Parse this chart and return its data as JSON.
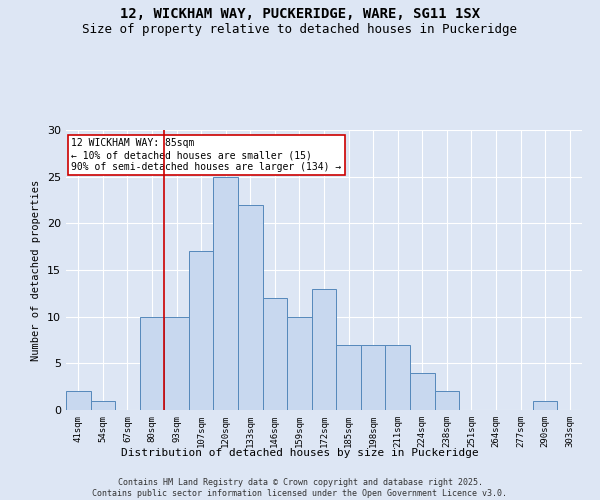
{
  "title": "12, WICKHAM WAY, PUCKERIDGE, WARE, SG11 1SX",
  "subtitle": "Size of property relative to detached houses in Puckeridge",
  "xlabel": "Distribution of detached houses by size in Puckeridge",
  "ylabel": "Number of detached properties",
  "bin_labels": [
    "41sqm",
    "54sqm",
    "67sqm",
    "80sqm",
    "93sqm",
    "107sqm",
    "120sqm",
    "133sqm",
    "146sqm",
    "159sqm",
    "172sqm",
    "185sqm",
    "198sqm",
    "211sqm",
    "224sqm",
    "238sqm",
    "251sqm",
    "264sqm",
    "277sqm",
    "290sqm",
    "303sqm"
  ],
  "bar_values": [
    2,
    1,
    0,
    10,
    10,
    17,
    25,
    22,
    12,
    10,
    13,
    7,
    7,
    7,
    4,
    2,
    0,
    0,
    0,
    1,
    0
  ],
  "bar_color": "#c8d8ef",
  "bar_edge_color": "#5588bb",
  "vline_color": "#cc0000",
  "annotation_text": "12 WICKHAM WAY: 85sqm\n← 10% of detached houses are smaller (15)\n90% of semi-detached houses are larger (134) →",
  "annotation_box_color": "#ffffff",
  "annotation_box_edge": "#cc0000",
  "ylim": [
    0,
    30
  ],
  "yticks": [
    0,
    5,
    10,
    15,
    20,
    25,
    30
  ],
  "footer": "Contains HM Land Registry data © Crown copyright and database right 2025.\nContains public sector information licensed under the Open Government Licence v3.0.",
  "bg_color": "#dde6f4",
  "title_fontsize": 10,
  "subtitle_fontsize": 9
}
